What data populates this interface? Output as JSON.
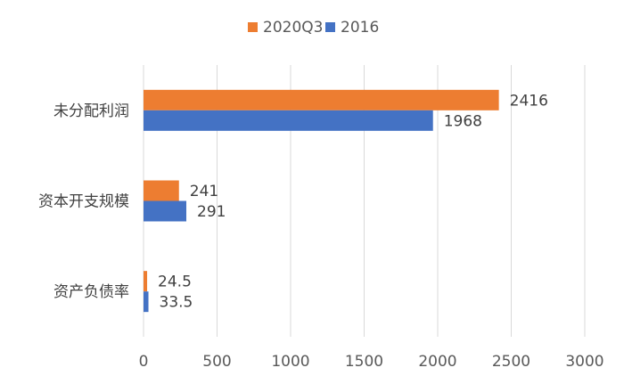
{
  "chart_data": {
    "type": "bar",
    "orientation": "horizontal",
    "categories": [
      "未分配利润",
      "资本开支规模",
      "资产负债率"
    ],
    "series": [
      {
        "name": "2020Q3",
        "values": [
          2416,
          241,
          24.5
        ],
        "color": "#ED7D31",
        "labels": [
          "2416",
          "241",
          "24.5"
        ]
      },
      {
        "name": "2016",
        "values": [
          1968,
          291,
          33.5
        ],
        "color": "#4472C4",
        "labels": [
          "1968",
          "291",
          "33.5"
        ]
      }
    ],
    "xlim": [
      0,
      3000
    ],
    "xticks": [
      0,
      500,
      1000,
      1500,
      2000,
      2500,
      3000
    ],
    "grid": "vertical",
    "legend": "top-center",
    "title": "",
    "xlabel": "",
    "ylabel": ""
  }
}
